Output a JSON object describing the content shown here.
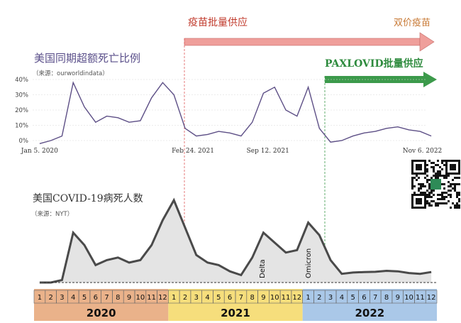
{
  "colors": {
    "excess_line": "#5d4f86",
    "deaths_line": "#4a4a4a",
    "deaths_fill": "#e4e4e4",
    "vaccine_arrow": "#ef9f9b",
    "bivalent_arrow": "#f2b88a",
    "paxlovid_arrow": "#3c9a4b",
    "year_2020": "#eab28a",
    "year_2021": "#f6de7c",
    "year_2022": "#aac8e8"
  },
  "annotations": {
    "vaccine_supply": "疫苗批量供应",
    "bivalent_vaccine": "双价疫苗",
    "paxlovid_supply": "PAXLOVID批量供应",
    "delta": "Delta",
    "omicron": "Omicron"
  },
  "qr_code": {
    "icon": "qr-code-icon"
  },
  "timeline": {
    "months": [
      "1",
      "2",
      "3",
      "4",
      "5",
      "6",
      "7",
      "8",
      "9",
      "10",
      "11",
      "12"
    ],
    "years": [
      "2020",
      "2021",
      "2022"
    ]
  },
  "chart_data": [
    {
      "type": "line",
      "title": "美国同期超额死亡比例",
      "source": "（来源：ourworldindata）",
      "y_unit": "%",
      "ylim": [
        0,
        40
      ],
      "yticks": [
        "0%",
        "10%",
        "20%",
        "30%",
        "40%"
      ],
      "x_labels": [
        "Jan 5. 2020",
        "Feb 24. 2021",
        "Sep 12. 2021",
        "Nov 6. 2022"
      ],
      "grid": true,
      "x": [
        "2020-01",
        "2020-02",
        "2020-03",
        "2020-04",
        "2020-05",
        "2020-06",
        "2020-07",
        "2020-08",
        "2020-09",
        "2020-10",
        "2020-11",
        "2020-12",
        "2021-01",
        "2021-02",
        "2021-03",
        "2021-04",
        "2021-05",
        "2021-06",
        "2021-07",
        "2021-08",
        "2021-09",
        "2021-10",
        "2021-11",
        "2021-12",
        "2022-01",
        "2022-02",
        "2022-03",
        "2022-04",
        "2022-05",
        "2022-06",
        "2022-07",
        "2022-08",
        "2022-09",
        "2022-10",
        "2022-11",
        "2022-12"
      ],
      "values": [
        -2,
        0,
        3,
        38,
        22,
        12,
        16,
        15,
        12,
        13,
        28,
        38,
        30,
        8,
        3,
        4,
        6,
        5,
        3,
        12,
        31,
        35,
        20,
        16,
        35,
        8,
        -1,
        0,
        3,
        5,
        6,
        8,
        9,
        7,
        6,
        3
      ]
    },
    {
      "type": "area",
      "title": "美国COVID-19病死人数",
      "source": "（来源：NYT）",
      "x": [
        "2020-01",
        "2020-02",
        "2020-03",
        "2020-04",
        "2020-05",
        "2020-06",
        "2020-07",
        "2020-08",
        "2020-09",
        "2020-10",
        "2020-11",
        "2020-12",
        "2021-01",
        "2021-02",
        "2021-03",
        "2021-04",
        "2021-05",
        "2021-06",
        "2021-07",
        "2021-08",
        "2021-09",
        "2021-10",
        "2021-11",
        "2021-12",
        "2022-01",
        "2022-02",
        "2022-03",
        "2022-04",
        "2022-05",
        "2022-06",
        "2022-07",
        "2022-08",
        "2022-09",
        "2022-10",
        "2022-11",
        "2022-12"
      ],
      "values": [
        0,
        0,
        100,
        2000,
        1500,
        700,
        900,
        1000,
        800,
        900,
        1500,
        2500,
        3300,
        2200,
        1100,
        800,
        700,
        450,
        300,
        1000,
        2000,
        1600,
        1200,
        1300,
        2400,
        1900,
        900,
        350,
        400,
        420,
        430,
        470,
        450,
        380,
        350,
        420
      ]
    }
  ]
}
